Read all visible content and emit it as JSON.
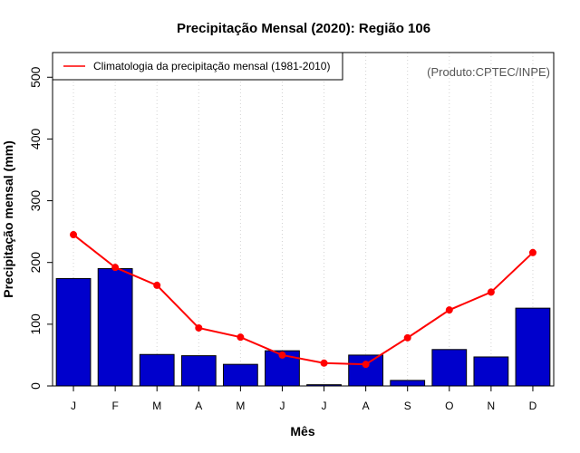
{
  "chart_data": {
    "type": "bar",
    "title": "Precipitação Mensal (2020): Região 106",
    "xlabel": "Mês",
    "ylabel": "Precipitação mensal (mm)",
    "ylim": [
      0,
      540
    ],
    "yticks": [
      0,
      100,
      200,
      300,
      400,
      500
    ],
    "grid": "vertical dotted",
    "categories": [
      "J",
      "F",
      "M",
      "A",
      "M",
      "J",
      "J",
      "A",
      "S",
      "O",
      "N",
      "D"
    ],
    "series": [
      {
        "name": "Precipitação mensal 2020",
        "type": "bar",
        "color": "#0000cc",
        "values": [
          174,
          190,
          51,
          49,
          35,
          57,
          2,
          50,
          9,
          59,
          47,
          126
        ]
      },
      {
        "name": "Climatologia da precipitação mensal (1981-2010)",
        "type": "line",
        "color": "#ff0000",
        "values": [
          245,
          192,
          163,
          94,
          79,
          50,
          37,
          35,
          78,
          123,
          152,
          216
        ]
      }
    ],
    "legend": {
      "label": "Climatologia da precipitação mensal (1981-2010)",
      "position": "top-left"
    },
    "annotation": "(Produto:CPTEC/INPE)"
  }
}
